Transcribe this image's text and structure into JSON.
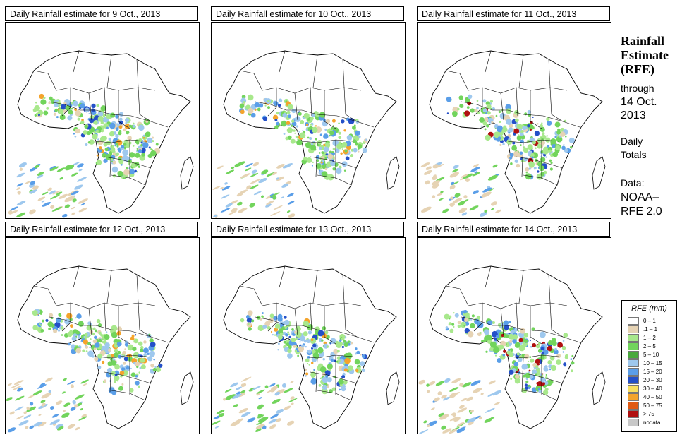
{
  "panels": [
    {
      "title": "Daily Rainfall estimate for  9 Oct., 2013",
      "day": 9
    },
    {
      "title": "Daily Rainfall estimate for  10 Oct., 2013",
      "day": 10
    },
    {
      "title": "Daily Rainfall estimate for  11 Oct., 2013",
      "day": 11
    },
    {
      "title": "Daily Rainfall estimate for  12 Oct., 2013",
      "day": 12
    },
    {
      "title": "Daily Rainfall estimate for  13 Oct., 2013",
      "day": 13
    },
    {
      "title": "Daily Rainfall estimate for  14 Oct., 2013",
      "day": 14
    }
  ],
  "side": {
    "title_line1": "Rainfall",
    "title_line2": "Estimate",
    "title_line3": "(RFE)",
    "through": "through",
    "date_line1": "14 Oct.",
    "date_line2": "2013",
    "daily": "Daily",
    "totals": "Totals",
    "data_label": "Data:",
    "source_line1": "NOAA–",
    "source_line2": "RFE 2.0"
  },
  "legend": {
    "title": "RFE (mm)",
    "items": [
      {
        "label": "0 – 1",
        "color": "#ffffff"
      },
      {
        "label": ".1 – 1",
        "color": "#e6d3b4"
      },
      {
        "label": "1 – 2",
        "color": "#a8e88c"
      },
      {
        "label": "2 – 5",
        "color": "#72d45c"
      },
      {
        "label": "5 – 10",
        "color": "#4aa83e"
      },
      {
        "label": "10 – 15",
        "color": "#9ec8ee"
      },
      {
        "label": "15 – 20",
        "color": "#5a9ee8"
      },
      {
        "label": "20 – 30",
        "color": "#2450c8"
      },
      {
        "label": "30 – 40",
        "color": "#f8e060"
      },
      {
        "label": "40 – 50",
        "color": "#f4a42c"
      },
      {
        "label": "50 – 75",
        "color": "#e05a14"
      },
      {
        "label": "> 75",
        "color": "#b01010"
      },
      {
        "label": "nodata",
        "color": "#c8c8c8"
      }
    ]
  }
}
